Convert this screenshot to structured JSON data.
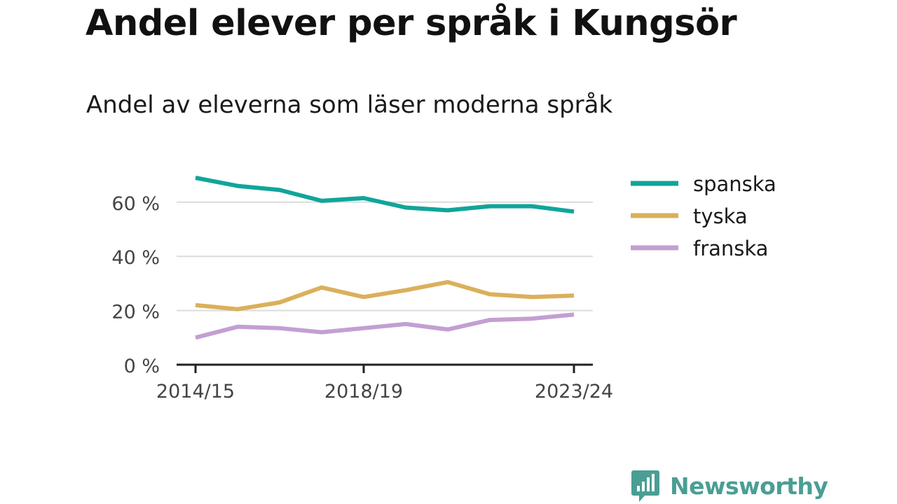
{
  "title": "Andel elever per språk i Kungsör",
  "subtitle": "Andel av eleverna som läser moderna språk",
  "brand": {
    "name": "Newsworthy",
    "color": "#4a9e94"
  },
  "chart_data": {
    "type": "line",
    "title": "Andel elever per språk i Kungsör",
    "subtitle": "Andel av eleverna som läser moderna språk",
    "xlabel": "",
    "ylabel": "",
    "x": [
      "2014/15",
      "2015/16",
      "2016/17",
      "2017/18",
      "2018/19",
      "2019/20",
      "2020/21",
      "2021/22",
      "2022/23",
      "2023/24"
    ],
    "x_tick_labels": [
      "2014/15",
      "2018/19",
      "2023/24"
    ],
    "y_ticks": [
      0,
      20,
      40,
      60
    ],
    "y_tick_labels": [
      "0 %",
      "20 %",
      "40 %",
      "60 %"
    ],
    "ylim": [
      0,
      70
    ],
    "grid": true,
    "legend_position": "right",
    "series": [
      {
        "name": "spanska",
        "color": "#10a59a",
        "values": [
          69,
          66,
          64.5,
          60.5,
          61.5,
          58,
          57,
          58.5,
          58.5,
          56.5
        ]
      },
      {
        "name": "tyska",
        "color": "#dab05c",
        "values": [
          22,
          20.5,
          23,
          28.5,
          25,
          27.5,
          30.5,
          26,
          25,
          25.5
        ]
      },
      {
        "name": "franska",
        "color": "#c39fd2",
        "values": [
          10,
          14,
          13.5,
          12,
          13.5,
          15,
          13,
          16.5,
          17,
          18.5
        ]
      }
    ]
  }
}
